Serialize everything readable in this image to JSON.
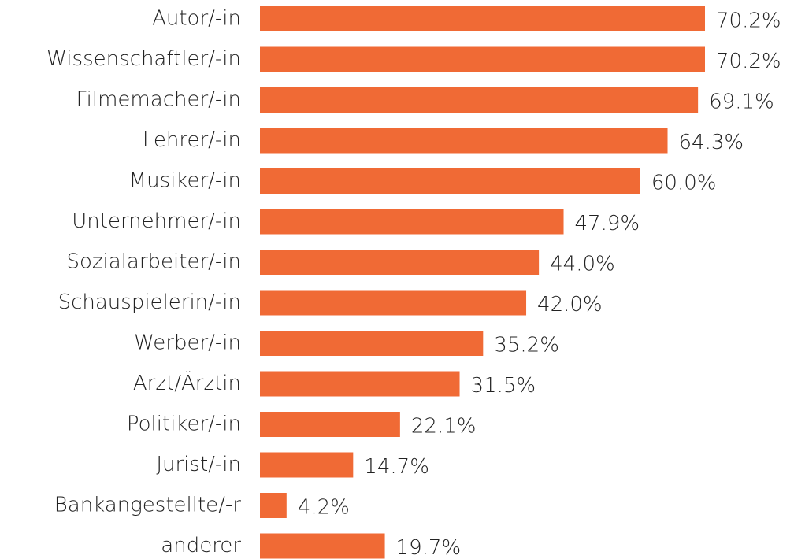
{
  "chart_data": {
    "type": "bar",
    "orientation": "horizontal",
    "color": "#f06a35",
    "categories": [
      "Autor/-in",
      "Wissenschaftler/-in",
      "Filmemacher/-in",
      "Lehrer/-in",
      "Musiker/-in",
      "Unternehmer/-in",
      "Sozialarbeiter/-in",
      "Schauspielerin/-in",
      "Werber/-in",
      "Arzt/Ärztin",
      "Politiker/-in",
      "Jurist/-in",
      "Bankangestellte/-r",
      "anderer"
    ],
    "values": [
      70.2,
      70.2,
      69.1,
      64.3,
      60.0,
      47.9,
      44.0,
      42.0,
      35.2,
      31.5,
      22.1,
      14.7,
      4.2,
      19.7
    ],
    "value_labels": [
      "70.2%",
      "70.2%",
      "69.1%",
      "64.3%",
      "60.0%",
      "47.9%",
      "44.0%",
      "42.0%",
      "35.2%",
      "31.5%",
      "22.1%",
      "14.7%",
      "4.2%",
      "19.7%"
    ]
  }
}
